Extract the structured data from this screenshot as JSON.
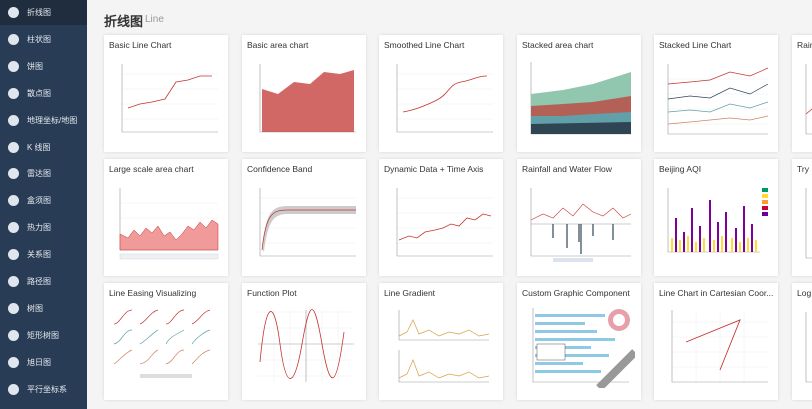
{
  "sidebar": {
    "items": [
      "折线图",
      "柱状图",
      "饼图",
      "散点图",
      "地理坐标/地图",
      "K 线图",
      "雷达图",
      "盒须图",
      "热力图",
      "关系图",
      "路径图",
      "树图",
      "矩形树图",
      "旭日图",
      "平行坐标系"
    ],
    "active": 0
  },
  "header": {
    "title": "折线图",
    "subtitle": "Line"
  },
  "cards": [
    "Basic Line Chart",
    "Basic area chart",
    "Smoothed Line Chart",
    "Stacked area chart",
    "Stacked Line Chart",
    "Rain",
    "Large scale area chart",
    "Confidence Band",
    "Dynamic Data + Time Axis",
    "Rainfall and Water Flow",
    "Beijing AQI",
    "Try D",
    "Line Easing Visualizing",
    "Function Plot",
    "Line Gradient",
    "Custom Graphic Component",
    "Line Chart in Cartesian Coor...",
    "Log"
  ]
}
